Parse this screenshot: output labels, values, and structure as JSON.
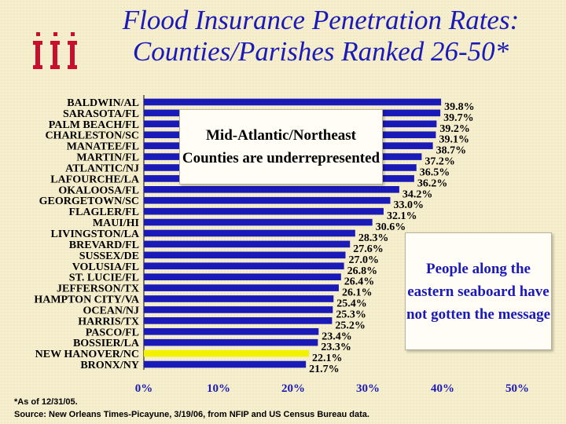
{
  "title": {
    "line1": "Flood Insurance Penetration Rates:",
    "line2": "Counties/Parishes Ranked 26-50*"
  },
  "colors": {
    "bar": "#1a1ab8",
    "highlight_bar": "#f2f200",
    "title": "#1a1ab8",
    "logo": "#c8102e",
    "background": "#f6efcf"
  },
  "logo_icon": "iii-logo-icon",
  "callouts": {
    "left": "Mid-Atlantic/Northeast Counties are underrepresented",
    "right": "People along the eastern seaboard have not gotten the message"
  },
  "footnote": {
    "line1": "*As of 12/31/05.",
    "line2": "Source: New Orleans Times-Picayune, 3/19/06, from NFIP and US Census Bureau data."
  },
  "chart_data": {
    "type": "bar",
    "orientation": "horizontal",
    "categories": [
      "BALDWIN/AL",
      "SARASOTA/FL",
      "PALM BEACH/FL",
      "CHARLESTON/SC",
      "MANATEE/FL",
      "MARTIN/FL",
      "ATLANTIC/NJ",
      "LAFOURCHE/LA",
      "OKALOOSA/FL",
      "GEORGETOWN/SC",
      "FLAGLER/FL",
      "MAUI/HI",
      "LIVINGSTON/LA",
      "BREVARD/FL",
      "SUSSEX/DE",
      "VOLUSIA/FL",
      "ST. LUCIE/FL",
      "JEFFERSON/TX",
      "HAMPTON CITY/VA",
      "OCEAN/NJ",
      "HARRIS/TX",
      "PASCO/FL",
      "BOSSIER/LA",
      "NEW HANOVER/NC",
      "BRONX/NY"
    ],
    "values": [
      39.8,
      39.7,
      39.2,
      39.1,
      38.7,
      37.2,
      36.5,
      36.2,
      34.2,
      33.0,
      32.1,
      30.6,
      28.3,
      27.6,
      27.0,
      26.8,
      26.4,
      26.1,
      25.4,
      25.3,
      25.2,
      23.4,
      23.3,
      22.1,
      21.7
    ],
    "labels": [
      "39.8%",
      "39.7%",
      "39.2%",
      "39.1%",
      "38.7%",
      "37.2%",
      "36.5%",
      "36.2%",
      "34.2%",
      "33.0%",
      "32.1%",
      "30.6%",
      "28.3%",
      "27.6%",
      "27.0%",
      "26.8%",
      "26.4%",
      "26.1%",
      "25.4%",
      "25.3%",
      "25.2%",
      "23.4%",
      "23.3%",
      "22.1%",
      "21.7%"
    ],
    "highlight_index": 23,
    "xlim": [
      0,
      50
    ],
    "xticks": [
      0,
      10,
      20,
      30,
      40,
      50
    ],
    "xtick_labels": [
      "0%",
      "10%",
      "20%",
      "30%",
      "40%",
      "50%"
    ],
    "grid": false,
    "legend": "none"
  }
}
